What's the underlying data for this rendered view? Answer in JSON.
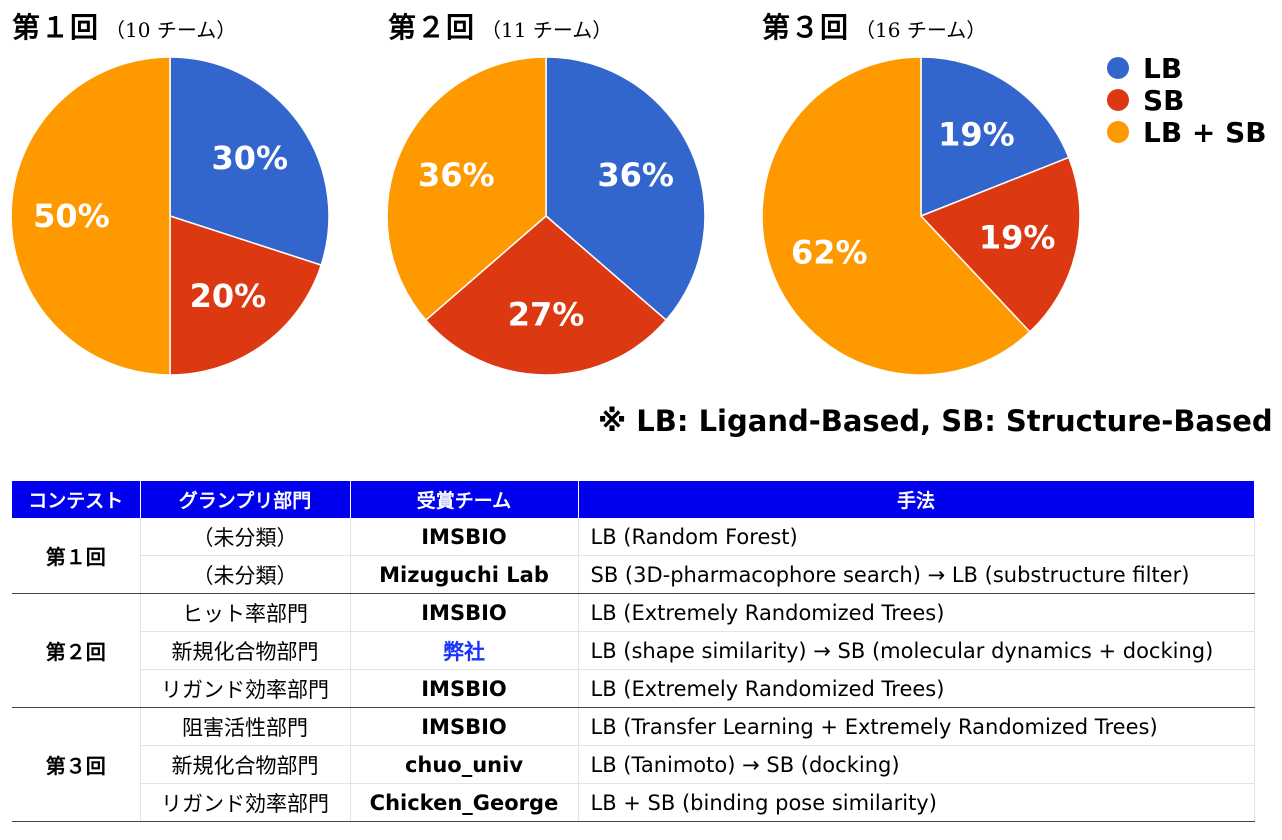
{
  "charts": [
    {
      "label": "第１回",
      "teams": "（10 チーム）"
    },
    {
      "label": "第２回",
      "teams": "（11 チーム）"
    },
    {
      "label": "第３回",
      "teams": "（16 チーム）"
    }
  ],
  "chart_data": [
    {
      "type": "pie",
      "title": "第１回（10 チーム）",
      "labels": [
        "LB",
        "SB",
        "LB + SB"
      ],
      "values": [
        30,
        20,
        50
      ],
      "value_labels": [
        "30%",
        "20%",
        "50%"
      ]
    },
    {
      "type": "pie",
      "title": "第２回（11 チーム）",
      "labels": [
        "LB",
        "SB",
        "LB + SB"
      ],
      "values": [
        36,
        27,
        36
      ],
      "value_labels": [
        "36%",
        "27%",
        "36%"
      ]
    },
    {
      "type": "pie",
      "title": "第３回（16 チーム）",
      "labels": [
        "LB",
        "SB",
        "LB + SB"
      ],
      "values": [
        19,
        19,
        62
      ],
      "value_labels": [
        "19%",
        "19%",
        "62%"
      ]
    }
  ],
  "legend": {
    "placement": "top-right",
    "items": [
      {
        "label": "LB",
        "color": "#3366cc"
      },
      {
        "label": "SB",
        "color": "#dc3912"
      },
      {
        "label": "LB + SB",
        "color": "#ff9900"
      }
    ]
  },
  "footnote": "※ LB: Ligand-Based, SB: Structure-Based",
  "table": {
    "headers": [
      "コンテスト",
      "グランプリ部門",
      "受賞チーム",
      "手法"
    ],
    "header_color": "#0000ee",
    "groups": [
      {
        "contest": "第１回",
        "rows": [
          {
            "division": "（未分類）",
            "team": "IMSBIO",
            "method": "LB (Random Forest)"
          },
          {
            "division": "（未分類）",
            "team": "Mizuguchi Lab",
            "method": "SB (3D-pharmacophore search) → LB (substructure filter)"
          }
        ]
      },
      {
        "contest": "第２回",
        "rows": [
          {
            "division": "ヒット率部門",
            "team": "IMSBIO",
            "method": "LB (Extremely Randomized Trees)"
          },
          {
            "division": "新規化合物部門",
            "team": "弊社",
            "method": "LB (shape similarity) → SB (molecular dynamics + docking)"
          },
          {
            "division": "リガンド効率部門",
            "team": "IMSBIO",
            "method": "LB (Extremely Randomized Trees)"
          }
        ]
      },
      {
        "contest": "第３回",
        "rows": [
          {
            "division": "阻害活性部門",
            "team": "IMSBIO",
            "method": "LB (Transfer Learning + Extremely Randomized Trees)"
          },
          {
            "division": "新規化合物部門",
            "team": "chuo_univ",
            "method": "LB (Tanimoto) → SB (docking)"
          },
          {
            "division": "リガンド効率部門",
            "team": "Chicken_George",
            "method": "LB + SB (binding pose similarity)"
          }
        ]
      }
    ]
  }
}
